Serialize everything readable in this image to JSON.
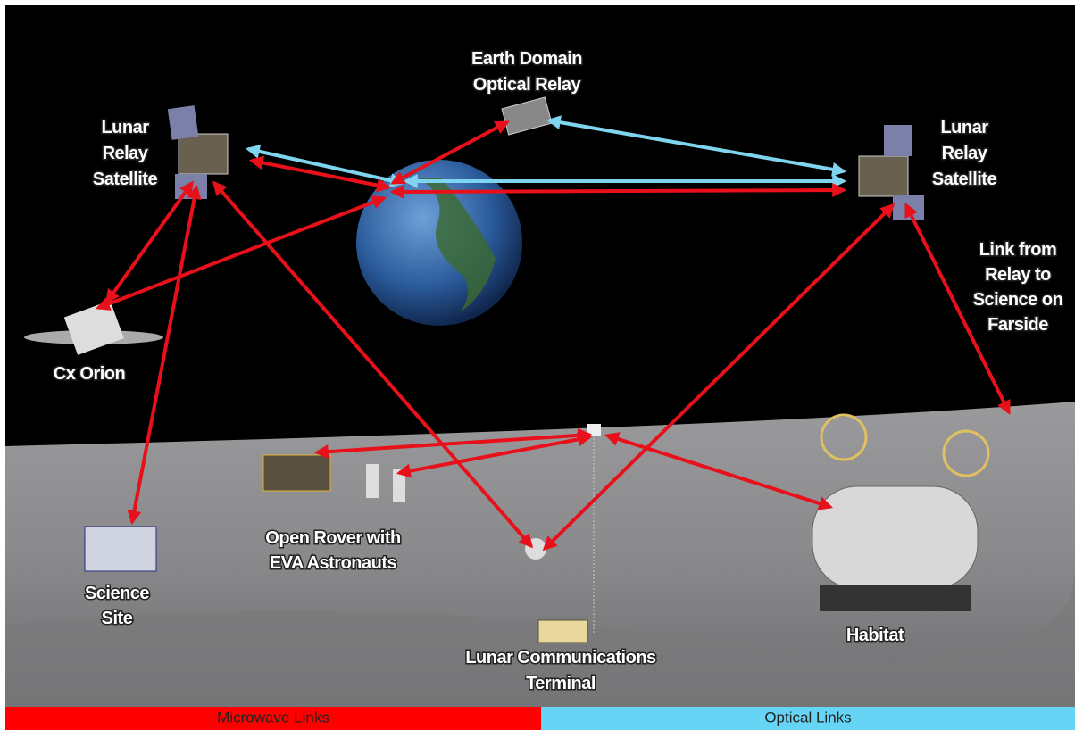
{
  "nodes": [
    {
      "label": [
        "Earth Domain",
        "Optical Relay"
      ]
    },
    {
      "label": [
        "Lunar",
        "Relay",
        "Satellite"
      ]
    },
    {
      "label": [
        "Lunar",
        "Relay",
        "Satellite"
      ]
    },
    {
      "label": [
        "Link from",
        "Relay to",
        "Science on",
        "Farside"
      ]
    },
    {
      "label": [
        "Cx Orion"
      ]
    },
    {
      "label": [
        "Open Rover with",
        "EVA Astronauts"
      ]
    },
    {
      "label": [
        "Science",
        "Site"
      ]
    },
    {
      "label": [
        "Lunar Communications",
        "Terminal"
      ]
    },
    {
      "label": [
        "Habitat"
      ]
    }
  ],
  "legend": {
    "microwave": "Microwave Links",
    "optical": "Optical Links"
  }
}
